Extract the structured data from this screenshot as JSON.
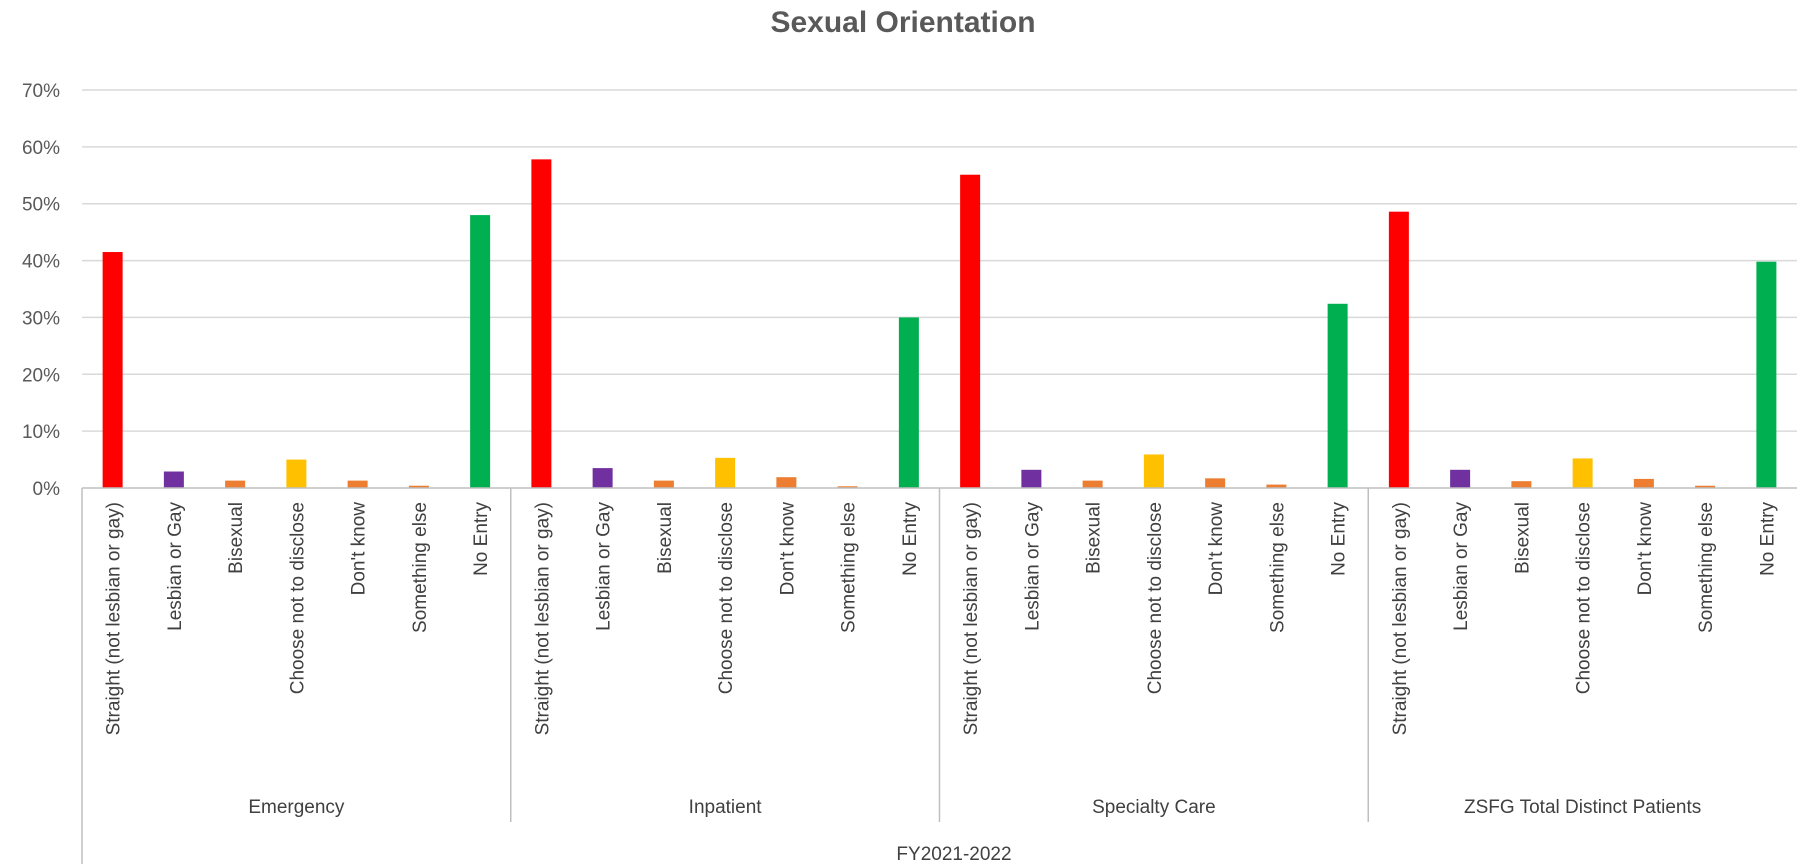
{
  "chart_data": {
    "type": "bar",
    "title": "Sexual Orientation",
    "outer_label": "FY2021-2022",
    "y_axis": {
      "ticks": [
        "0%",
        "10%",
        "20%",
        "30%",
        "40%",
        "50%",
        "60%",
        "70%"
      ],
      "min": 0,
      "max": 70
    },
    "categories": [
      "Straight (not lesbian or gay)",
      "Lesbian or Gay",
      "Bisexual",
      "Choose not to disclose",
      "Don't know",
      "Something else",
      "No Entry"
    ],
    "category_colors": [
      "#FF0000",
      "#7030A0",
      "#ED7D31",
      "#FFC000",
      "#ED7D31",
      "#ED7D31",
      "#00B050"
    ],
    "groups": [
      {
        "name": "Emergency",
        "values": [
          41.5,
          2.9,
          1.3,
          5.0,
          1.3,
          0.4,
          48.0
        ]
      },
      {
        "name": "Inpatient",
        "values": [
          57.8,
          3.5,
          1.3,
          5.3,
          1.9,
          0.3,
          30.0
        ]
      },
      {
        "name": "Specialty Care",
        "values": [
          55.1,
          3.2,
          1.3,
          5.9,
          1.7,
          0.6,
          32.4
        ]
      },
      {
        "name": "ZSFG Total Distinct Patients",
        "values": [
          48.6,
          3.2,
          1.2,
          5.2,
          1.6,
          0.4,
          39.8
        ]
      }
    ],
    "legend": "none",
    "grid": true
  }
}
